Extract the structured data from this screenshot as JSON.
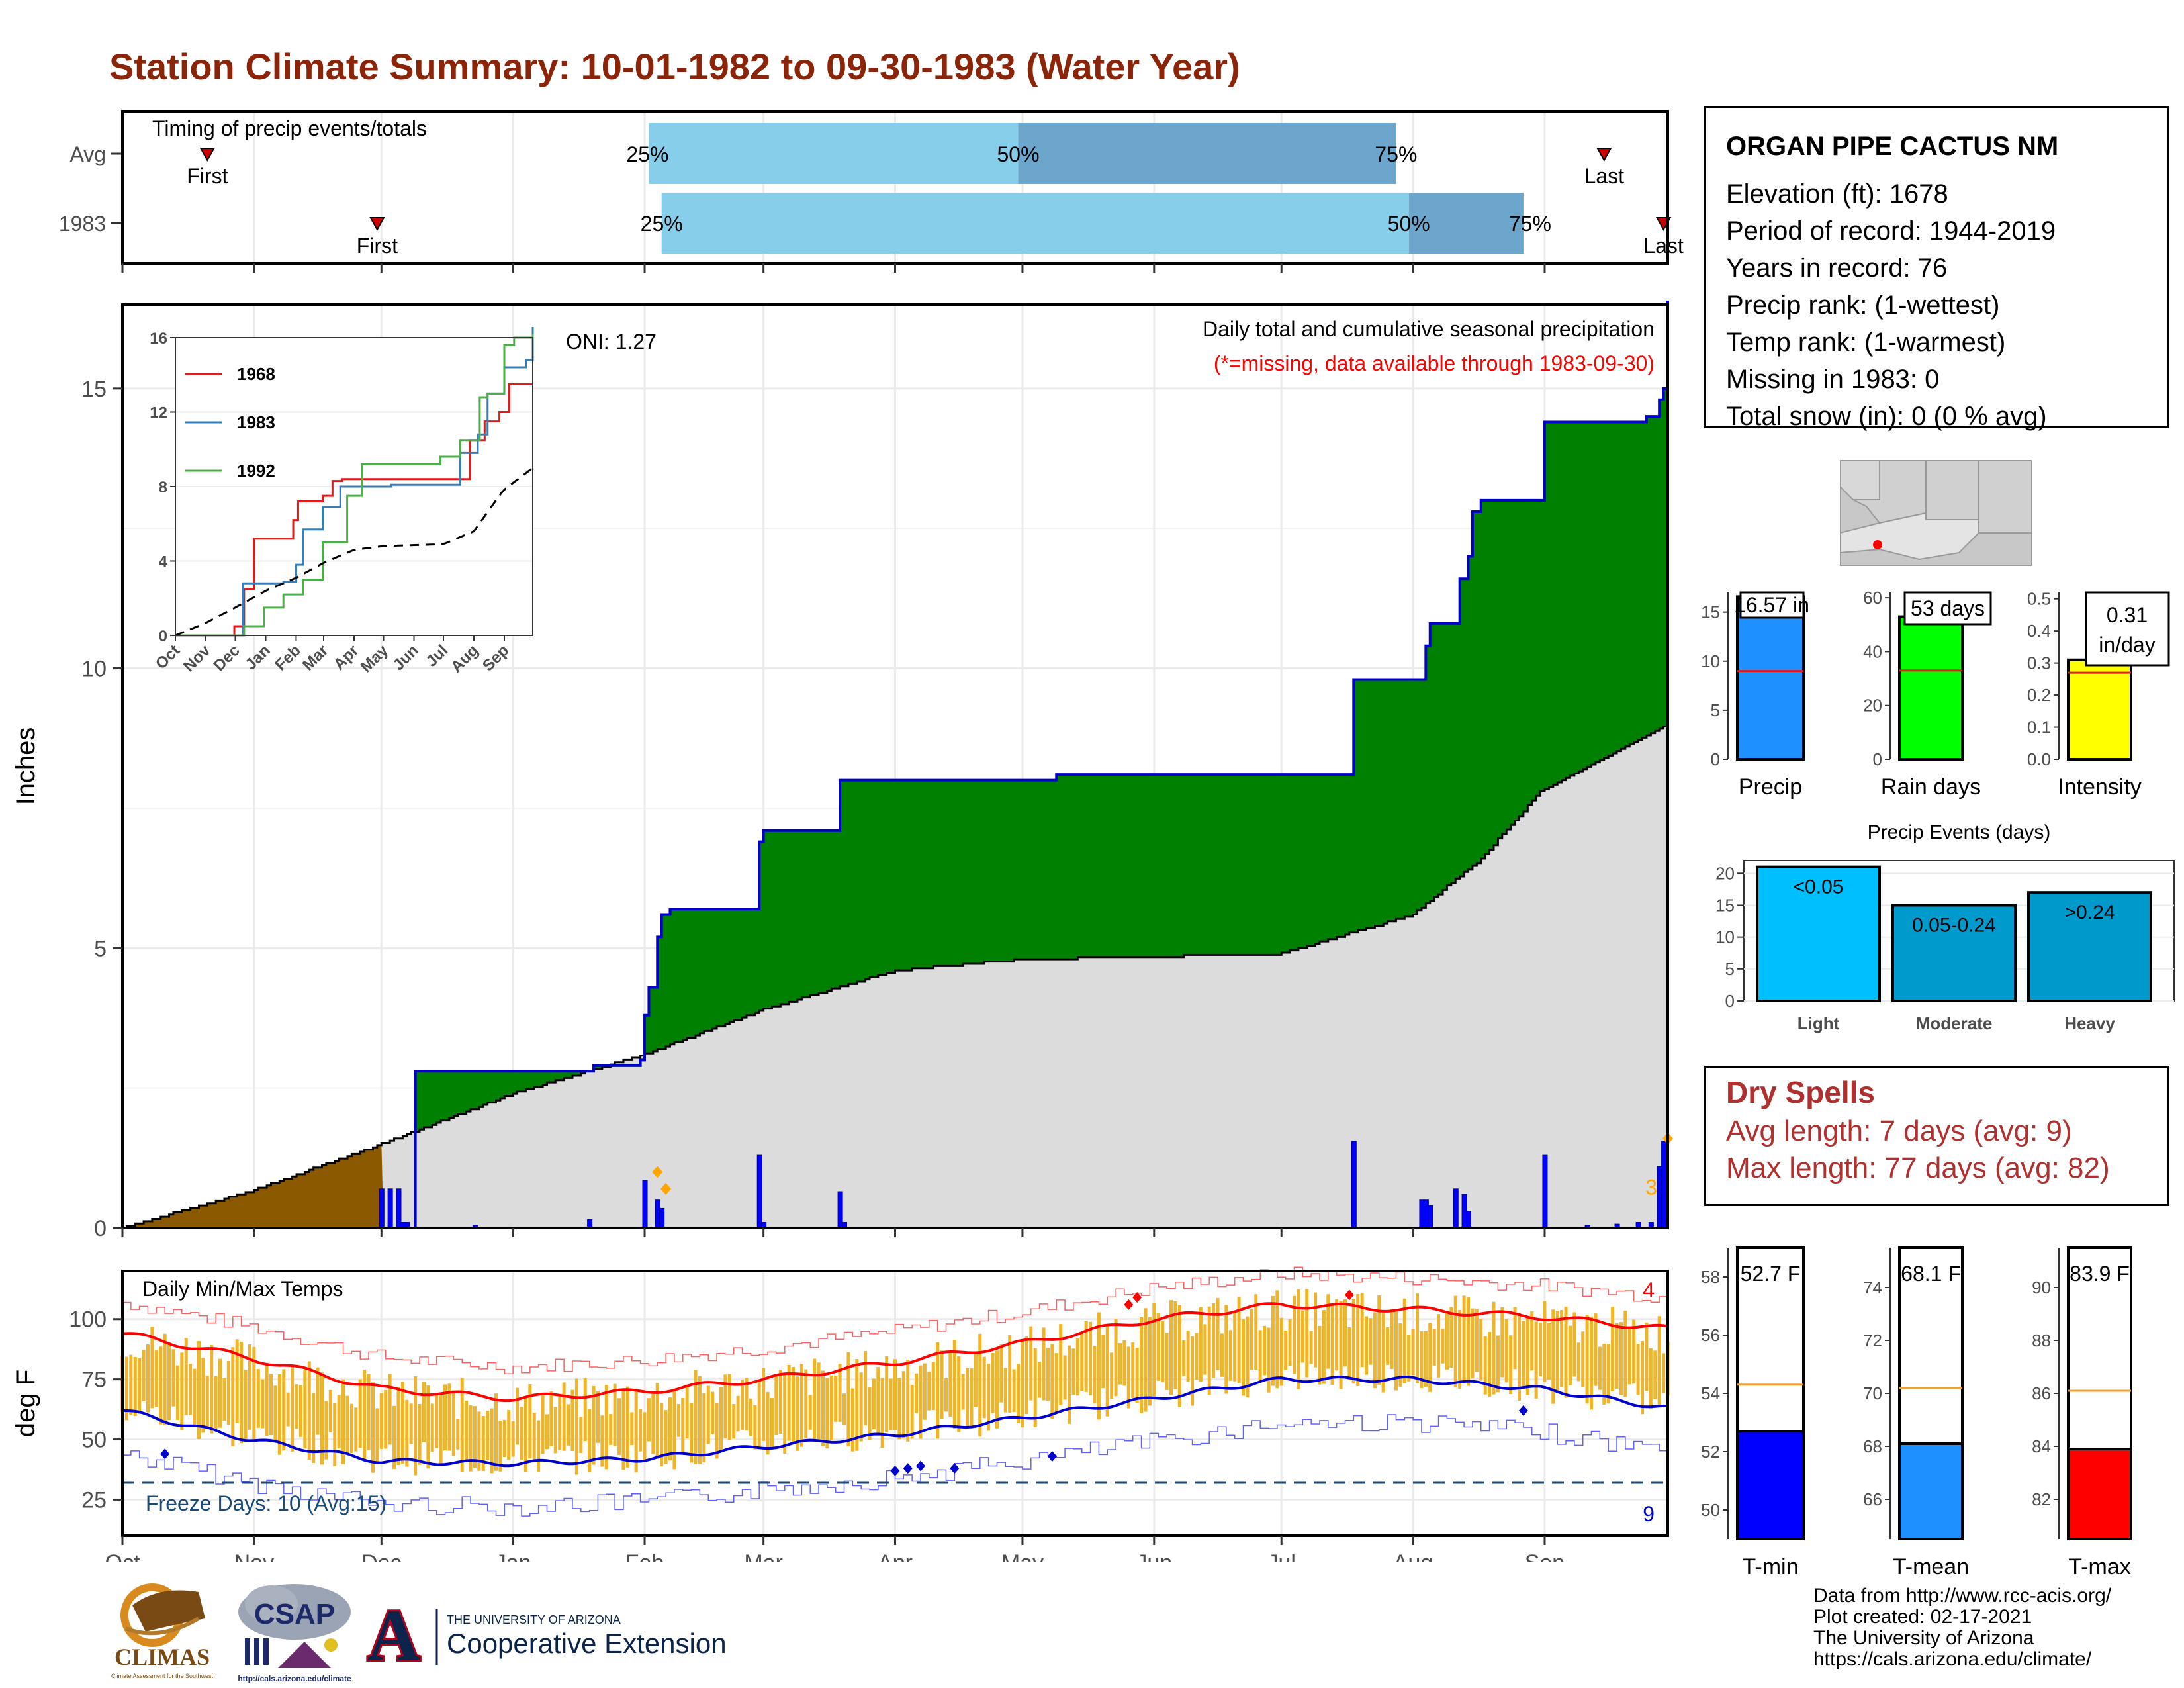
{
  "title": "Station Climate Summary: 10-01-1982 to 09-30-1983 (Water Year)",
  "timing": {
    "label": "Timing of precip events/totals",
    "rows": [
      {
        "name": "Avg",
        "first_label": "First",
        "last_label": "Last",
        "first_day": 20,
        "last_day": 349,
        "p25_day": 124,
        "p50_day": 211,
        "p75_day": 300
      },
      {
        "name": "1983",
        "first_label": "First",
        "last_label": "Last",
        "first_day": 60,
        "last_day": 363,
        "p25_day": 127,
        "p50_day": 303,
        "p75_day": 330
      }
    ],
    "p25_label": "25%",
    "p50_label": "50%",
    "p75_label": "75%"
  },
  "chart_data": [
    {
      "type": "area",
      "title": "Daily total and cumulative seasonal precipitation",
      "subtitle": "(*=missing, data available through 1983-09-30)",
      "ylabel": "Inches",
      "ylim": [
        0,
        16.5
      ],
      "y_ticks": [
        "0",
        "5",
        "10",
        "15"
      ],
      "months": [
        "Oct",
        "Nov",
        "Dec",
        "Jan",
        "Feb",
        "Mar",
        "Apr",
        "May",
        "Jun",
        "Jul",
        "Aug",
        "Sep"
      ],
      "oni_label": "ONI: 1.27",
      "extreme_count": "3",
      "series": [
        {
          "name": "1983 cumulative",
          "x_day": [
            0,
            61,
            68,
            69,
            110,
            111,
            122,
            123,
            124,
            126,
            127,
            129,
            130,
            150,
            151,
            168,
            169,
            220,
            289,
            290,
            306,
            307,
            308,
            314,
            315,
            317,
            318,
            320,
            334,
            335,
            357,
            359,
            362,
            363,
            364
          ],
          "y": [
            0,
            0,
            0,
            2.8,
            2.8,
            2.9,
            3.0,
            3.8,
            4.3,
            5.2,
            5.6,
            5.7,
            5.7,
            6.9,
            7.1,
            7.1,
            8.0,
            8.1,
            8.1,
            9.8,
            9.8,
            10.4,
            10.8,
            10.8,
            11.6,
            12.0,
            12.8,
            13.0,
            13.0,
            14.4,
            14.4,
            14.5,
            14.8,
            15.0,
            16.57
          ]
        },
        {
          "name": "Avg cumulative",
          "x_day": [
            0,
            30,
            61,
            92,
            123,
            151,
            182,
            212,
            243,
            273,
            304,
            320,
            334,
            364
          ],
          "y": [
            0,
            0.65,
            1.5,
            2.4,
            3.1,
            3.9,
            4.6,
            4.8,
            4.85,
            4.9,
            5.6,
            6.6,
            7.8,
            9.0
          ]
        },
        {
          "name": "Daily precip",
          "x_day": [
            61,
            63,
            65,
            66,
            67,
            83,
            110,
            123,
            126,
            127,
            150,
            151,
            169,
            170,
            290,
            306,
            307,
            308,
            314,
            316,
            317,
            335,
            345,
            352,
            357,
            360,
            362,
            363
          ],
          "y": [
            0.7,
            0.7,
            0.7,
            0.1,
            0.1,
            0.05,
            0.15,
            0.85,
            0.5,
            0.35,
            1.3,
            0.1,
            0.65,
            0.1,
            1.55,
            0.5,
            0.5,
            0.4,
            0.7,
            0.6,
            0.3,
            1.3,
            0.05,
            0.07,
            0.1,
            0.1,
            1.1,
            1.55
          ]
        }
      ]
    },
    {
      "type": "line",
      "inset": true,
      "ylim": [
        0,
        16
      ],
      "y_ticks": [
        "0",
        "4",
        "8",
        "12",
        "16"
      ],
      "months": [
        "Oct",
        "Nov",
        "Dec",
        "Jan",
        "Feb",
        "Mar",
        "Apr",
        "May",
        "Jun",
        "Jul",
        "Aug",
        "Sep"
      ],
      "series": [
        {
          "name": "1968",
          "color": "#e31a1c",
          "x_day": [
            0,
            60,
            70,
            80,
            90,
            120,
            125,
            150,
            160,
            170,
            240,
            285,
            300,
            315,
            330,
            340,
            364
          ],
          "y": [
            0,
            0.5,
            2.5,
            5.2,
            5.2,
            6.2,
            7.2,
            7.5,
            8.3,
            8.4,
            8.4,
            8.4,
            10.5,
            11.5,
            12.0,
            13.5,
            13.5
          ]
        },
        {
          "name": "1983",
          "color": "#377eb8",
          "x_day": [
            0,
            61,
            69,
            110,
            123,
            130,
            150,
            168,
            220,
            290,
            308,
            318,
            335,
            357,
            364
          ],
          "y": [
            0,
            0,
            2.8,
            2.9,
            3.8,
            5.7,
            6.9,
            8.0,
            8.1,
            9.8,
            10.8,
            13.0,
            14.4,
            14.8,
            16.57
          ]
        },
        {
          "name": "1992",
          "color": "#4daf4a",
          "x_day": [
            0,
            70,
            90,
            110,
            130,
            150,
            175,
            190,
            270,
            290,
            310,
            318,
            335,
            345,
            364
          ],
          "y": [
            0,
            0.5,
            1.5,
            2.2,
            3.0,
            5.0,
            7.5,
            9.2,
            9.6,
            10.5,
            12.8,
            13.0,
            15.6,
            16.0,
            16.2
          ]
        },
        {
          "name": "Avg",
          "x_day": [
            0,
            30,
            61,
            92,
            123,
            151,
            182,
            212,
            243,
            273,
            304,
            334,
            364
          ],
          "y": [
            0,
            0.65,
            1.5,
            2.4,
            3.1,
            3.9,
            4.6,
            4.8,
            4.85,
            4.9,
            5.6,
            7.8,
            9.0
          ]
        }
      ]
    },
    {
      "type": "bar",
      "title": "Daily Min/Max Temps",
      "ylabel": "deg F",
      "ylim": [
        10,
        120
      ],
      "y_ticks": [
        "25",
        "50",
        "75",
        "100"
      ],
      "months": [
        "Oct",
        "Nov",
        "Dec",
        "Jan",
        "Feb",
        "Mar",
        "Apr",
        "May",
        "Jun",
        "Jul",
        "Aug",
        "Sep"
      ],
      "freeze_label": "Freeze Days: 10 (Avg:15)",
      "freeze_line": 32,
      "hot_count": "4",
      "cold_count": "9",
      "normal_max_anchors": {
        "x_day": [
          0,
          30,
          61,
          92,
          123,
          151,
          182,
          212,
          243,
          273,
          304,
          334,
          364
        ],
        "y": [
          94,
          84,
          71,
          67,
          70,
          75,
          82,
          90,
          100,
          106,
          104,
          101,
          96
        ]
      },
      "normal_min_anchors": {
        "x_day": [
          0,
          30,
          61,
          92,
          123,
          151,
          182,
          212,
          243,
          273,
          304,
          334,
          364
        ],
        "y": [
          62,
          50,
          41,
          40,
          42,
          47,
          52,
          59,
          67,
          75,
          75,
          71,
          63
        ]
      }
    },
    {
      "type": "bar",
      "categories": [
        "Precip",
        "Rain days",
        "Intensity"
      ],
      "values": [
        16.57,
        53,
        0.31
      ],
      "labels": [
        "16.57 in",
        "53 days",
        "0.31 in/day"
      ],
      "averages": [
        9.0,
        33,
        0.27
      ],
      "ylims": [
        [
          0,
          17
        ],
        [
          0,
          62
        ],
        [
          0,
          0.52
        ]
      ],
      "y_ticks": [
        [
          "0",
          "5",
          "10",
          "15"
        ],
        [
          "0",
          "20",
          "40",
          "60"
        ],
        [
          "0.0",
          "0.1",
          "0.2",
          "0.3",
          "0.4",
          "0.5"
        ]
      ]
    },
    {
      "type": "bar",
      "title": "Precip Events (days)",
      "categories": [
        "Light",
        "Moderate",
        "Heavy"
      ],
      "labels": [
        "<0.05",
        "0.05-0.24",
        ">0.24"
      ],
      "values": [
        21,
        15,
        17
      ],
      "ylim": [
        0,
        22
      ],
      "y_ticks": [
        "0",
        "5",
        "10",
        "15",
        "20"
      ]
    },
    {
      "type": "bar",
      "categories": [
        "T-min",
        "T-mean",
        "T-max"
      ],
      "values": [
        52.7,
        68.1,
        83.9
      ],
      "labels": [
        "52.7 F",
        "68.1 F",
        "83.9 F"
      ],
      "averages": [
        54.3,
        70.2,
        86.1
      ],
      "ylims": [
        [
          49,
          59
        ],
        [
          64.5,
          75.5
        ],
        [
          80.5,
          91.5
        ]
      ],
      "y_ticks": [
        [
          "50",
          "52",
          "54",
          "56",
          "58"
        ],
        [
          "66",
          "68",
          "70",
          "72",
          "74"
        ],
        [
          "82",
          "84",
          "86",
          "88",
          "90"
        ]
      ]
    }
  ],
  "station": {
    "name": "ORGAN PIPE CACTUS NM",
    "lines": [
      "Elevation (ft): 1678",
      "Period of record: 1944-2019",
      "Years in record: 76",
      "Precip rank:  (1-wettest)",
      "Temp rank:  (1-warmest)",
      "Missing in 1983: 0",
      "Total snow (in): 0 (0 % avg)"
    ]
  },
  "dry_spells": {
    "title": "Dry Spells",
    "avg": "Avg length: 7 days (avg: 9)",
    "max": "Max length: 77 days (avg: 82)"
  },
  "credits": [
    "Data from http://www.rcc-acis.org/",
    "Plot created: 02-17-2021",
    "The University of Arizona",
    "https://cals.arizona.edu/climate/"
  ],
  "logos": {
    "climas": "CLIMAS",
    "climas_sub": "Climate Assessment for the Southwest",
    "csap": "CSAP",
    "csap_url": "http://cals.arizona.edu/climate",
    "ua_line1": "THE UNIVERSITY OF ARIZONA",
    "ua_line2": "Cooperative Extension",
    "ua_letter": "A"
  },
  "colors": {
    "title": "#8b2408",
    "green": "#008000",
    "brown": "#8b5a00",
    "gray_fill": "#dcdcdc",
    "blue_line": "#0000cc",
    "orange_bar": "#f0b428",
    "red": "#ff0000"
  }
}
